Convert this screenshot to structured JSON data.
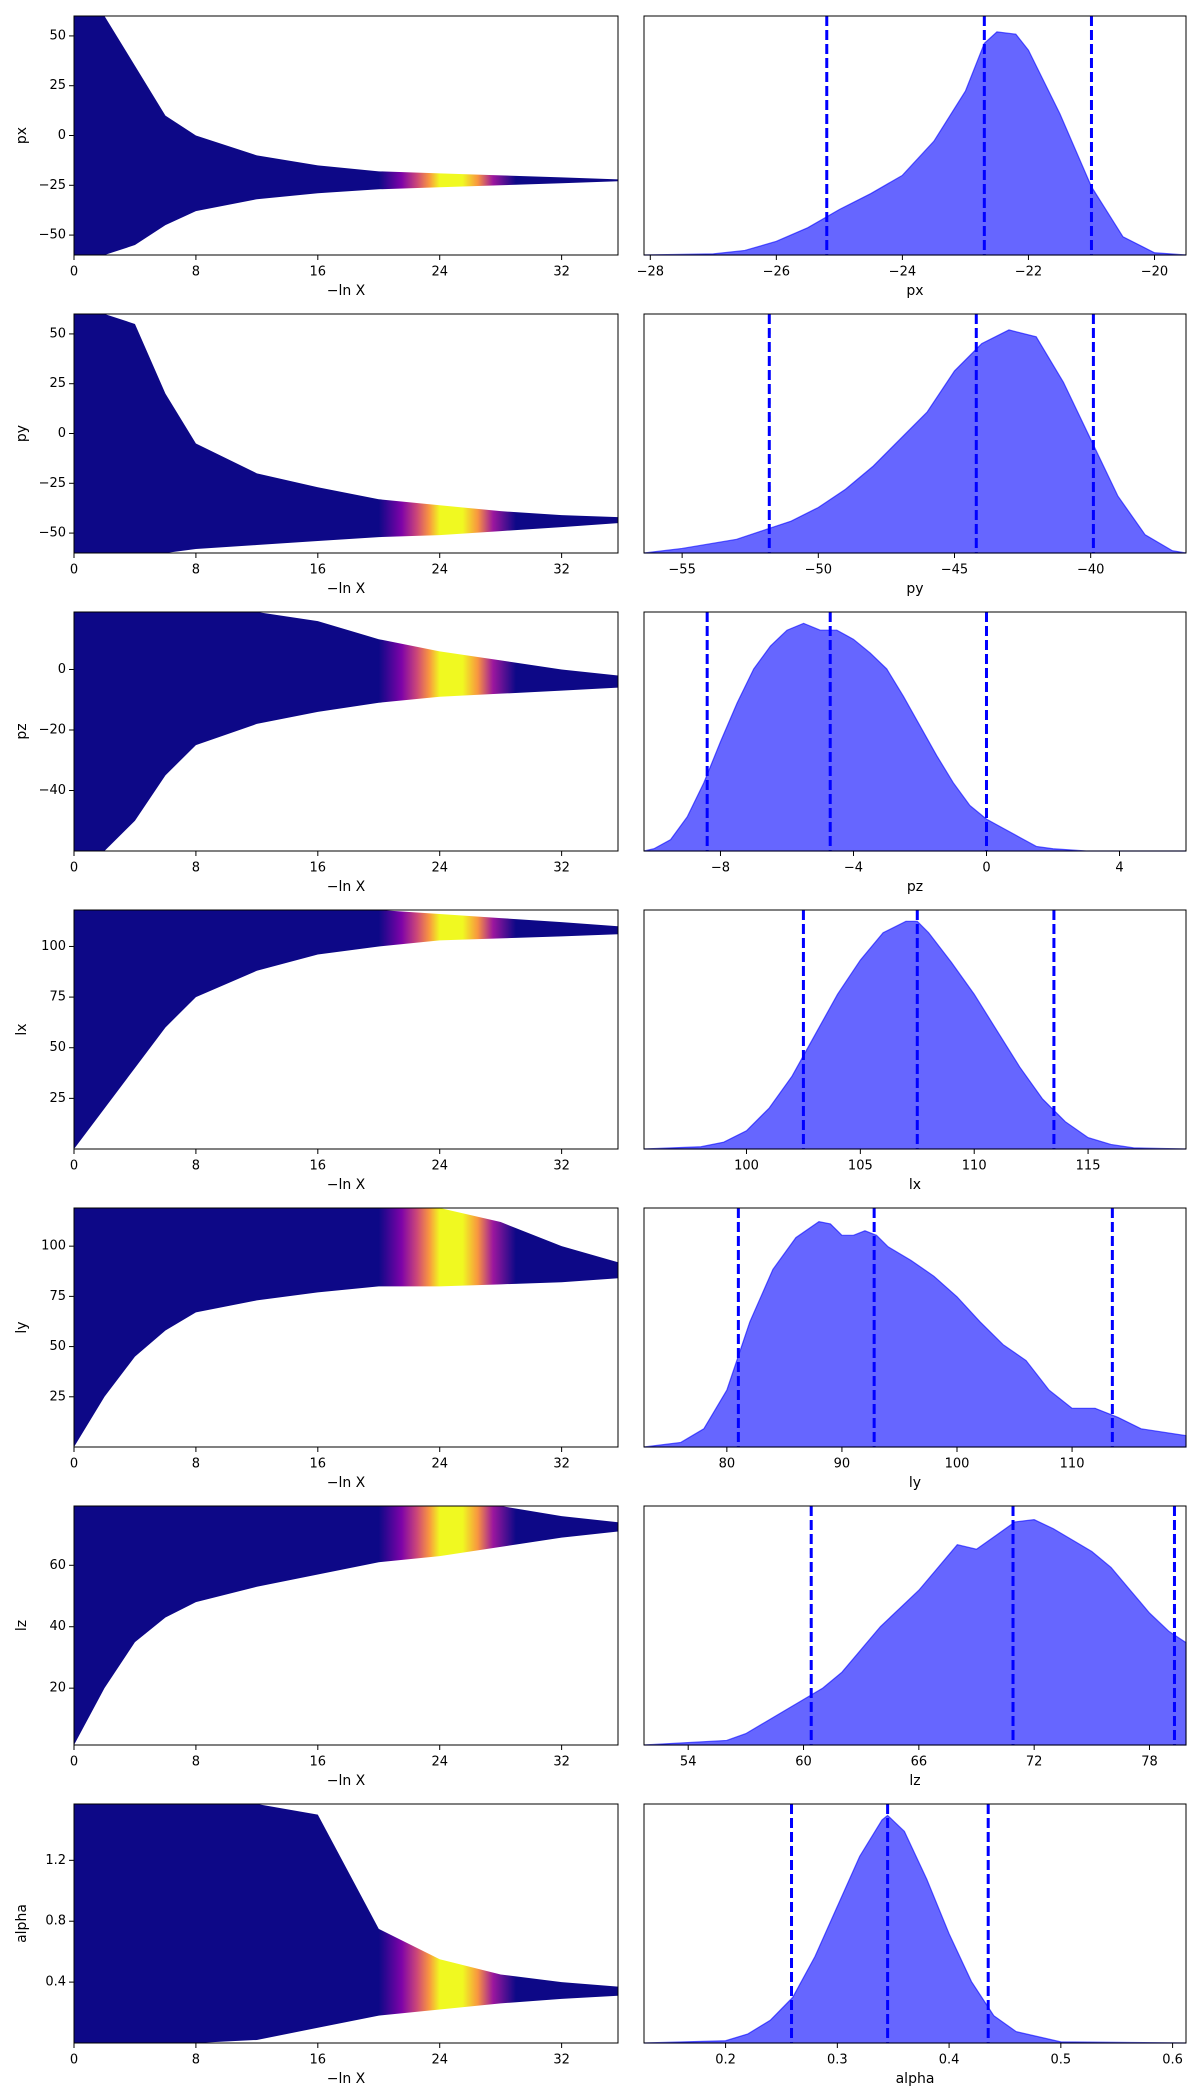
{
  "chart_data": [
    {
      "type": "trace",
      "xlabel": "−ln X",
      "ylabel": "px",
      "xlim": [
        0,
        35.7
      ],
      "xticks": [
        0,
        8,
        16,
        24,
        32
      ],
      "ylim": [
        -60,
        60
      ],
      "yticks": [
        {
          "value": -50,
          "label": "−50"
        },
        {
          "value": -25,
          "label": "−25"
        },
        0,
        25,
        50
      ],
      "x": [
        0,
        2,
        4,
        6,
        8,
        12,
        16,
        20,
        24,
        28,
        32,
        35.7
      ],
      "upper": [
        60,
        60,
        35,
        10,
        0,
        -10,
        -15,
        -18,
        -19,
        -20,
        -21,
        -22
      ],
      "lower": [
        -60,
        -60,
        -55,
        -45,
        -38,
        -32,
        -29,
        -27,
        -26,
        -25,
        -24,
        -23
      ],
      "colormap": {
        "x": [
          20,
          21.5,
          22.5,
          23.3,
          24,
          25.5,
          26.5,
          27.5,
          29
        ],
        "colors": [
          "#0d0887",
          "#7e03a8",
          "#cc4778",
          "#f89540",
          "#f0f921",
          "#f0f921",
          "#f89540",
          "#9c179e",
          "#0d0887"
        ]
      }
    },
    {
      "type": "kde",
      "xlabel": "px",
      "xlim": [
        -28.1,
        -19.5
      ],
      "xticks": [
        {
          "value": -28,
          "label": "−28"
        },
        {
          "value": -26,
          "label": "−26"
        },
        {
          "value": -24,
          "label": "−24"
        },
        {
          "value": -22,
          "label": "−22"
        },
        {
          "value": -20,
          "label": "−20"
        }
      ],
      "ylim": [
        0,
        1.05
      ],
      "color": "#0000ff",
      "x": [
        -28.1,
        -27,
        -26.5,
        -26,
        -25.5,
        -25,
        -24.5,
        -24,
        -23.5,
        -23,
        -22.7,
        -22.5,
        -22.2,
        -22,
        -21.5,
        -21,
        -20.5,
        -20,
        -19.5
      ],
      "density": [
        0,
        0.005,
        0.02,
        0.06,
        0.12,
        0.2,
        0.27,
        0.35,
        0.5,
        0.72,
        0.93,
        0.98,
        0.97,
        0.9,
        0.62,
        0.3,
        0.08,
        0.01,
        0
      ],
      "quantiles": [
        -25.2,
        -22.7,
        -21
      ]
    },
    {
      "type": "trace",
      "xlabel": "−ln X",
      "ylabel": "py",
      "xlim": [
        0,
        35.7
      ],
      "xticks": [
        0,
        8,
        16,
        24,
        32
      ],
      "ylim": [
        -60,
        60
      ],
      "yticks": [
        {
          "value": -50,
          "label": "−50"
        },
        {
          "value": -25,
          "label": "−25"
        },
        0,
        25,
        50
      ],
      "x": [
        0,
        2,
        4,
        6,
        8,
        12,
        16,
        20,
        24,
        28,
        32,
        35.7
      ],
      "upper": [
        60,
        60,
        55,
        20,
        -5,
        -20,
        -27,
        -33,
        -36,
        -39,
        -41,
        -42
      ],
      "lower": [
        -60,
        -60,
        -60,
        -60,
        -58,
        -56,
        -54,
        -52,
        -51,
        -49,
        -47,
        -45
      ],
      "colormap": {
        "x": [
          20,
          21.5,
          22.5,
          23.3,
          24,
          25.5,
          26.5,
          27.5,
          29
        ],
        "colors": [
          "#0d0887",
          "#7e03a8",
          "#cc4778",
          "#f89540",
          "#f0f921",
          "#f0f921",
          "#f89540",
          "#9c179e",
          "#0d0887"
        ]
      }
    },
    {
      "type": "kde",
      "xlabel": "py",
      "xlim": [
        -56.4,
        -36.5
      ],
      "xticks": [
        {
          "value": -55,
          "label": "−55"
        },
        {
          "value": -50,
          "label": "−50"
        },
        {
          "value": -45,
          "label": "−45"
        },
        {
          "value": -40,
          "label": "−40"
        }
      ],
      "ylim": [
        0,
        1.05
      ],
      "color": "#0000ff",
      "x": [
        -56.4,
        -55,
        -53,
        -52,
        -51,
        -50,
        -49,
        -48,
        -47,
        -46,
        -45,
        -44,
        -43,
        -42,
        -41,
        -40,
        -39,
        -38,
        -37,
        -36.5
      ],
      "density": [
        0,
        0.02,
        0.06,
        0.1,
        0.14,
        0.2,
        0.28,
        0.38,
        0.5,
        0.62,
        0.8,
        0.92,
        0.98,
        0.95,
        0.75,
        0.5,
        0.25,
        0.08,
        0.01,
        0
      ],
      "quantiles": [
        -51.8,
        -44.2,
        -39.9
      ]
    },
    {
      "type": "trace",
      "xlabel": "−ln X",
      "ylabel": "pz",
      "xlim": [
        0,
        35.7
      ],
      "xticks": [
        0,
        8,
        16,
        24,
        32
      ],
      "ylim": [
        -60,
        19
      ],
      "yticks": [
        {
          "value": -40,
          "label": "−40"
        },
        {
          "value": -20,
          "label": "−20"
        },
        0
      ],
      "x": [
        0,
        2,
        4,
        6,
        8,
        12,
        16,
        20,
        24,
        28,
        32,
        35.7
      ],
      "upper": [
        19,
        19,
        19,
        19,
        19,
        19,
        16,
        10,
        6,
        3,
        0,
        -2
      ],
      "lower": [
        -60,
        -60,
        -50,
        -35,
        -25,
        -18,
        -14,
        -11,
        -9,
        -8,
        -7,
        -6
      ],
      "colormap": {
        "x": [
          20,
          21.5,
          22.5,
          23.3,
          24,
          25.5,
          26.5,
          27.5,
          29
        ],
        "colors": [
          "#0d0887",
          "#7e03a8",
          "#cc4778",
          "#f89540",
          "#f0f921",
          "#f0f921",
          "#f89540",
          "#9c179e",
          "#0d0887"
        ]
      }
    },
    {
      "type": "kde",
      "xlabel": "pz",
      "xlim": [
        -10.3,
        6
      ],
      "xticks": [
        {
          "value": -8,
          "label": "−8"
        },
        {
          "value": -4,
          "label": "−4"
        },
        0,
        4
      ],
      "ylim": [
        0,
        1.05
      ],
      "color": "#0000ff",
      "x": [
        -10.3,
        -10,
        -9.5,
        -9,
        -8.5,
        -8,
        -7.5,
        -7,
        -6.5,
        -6,
        -5.5,
        -5,
        -4.5,
        -4,
        -3.5,
        -3,
        -2.5,
        -2,
        -1.5,
        -1,
        -0.5,
        0,
        0.5,
        1,
        1.5,
        2,
        3,
        6
      ],
      "density": [
        0,
        0.01,
        0.05,
        0.15,
        0.3,
        0.48,
        0.65,
        0.8,
        0.9,
        0.97,
        1,
        0.97,
        0.97,
        0.93,
        0.87,
        0.8,
        0.68,
        0.55,
        0.42,
        0.3,
        0.2,
        0.14,
        0.1,
        0.06,
        0.02,
        0.01,
        0,
        0
      ],
      "quantiles": [
        -8.4,
        -4.7,
        0
      ]
    },
    {
      "type": "trace",
      "xlabel": "−ln X",
      "ylabel": "lx",
      "xlim": [
        0,
        35.7
      ],
      "xticks": [
        0,
        8,
        16,
        24,
        32
      ],
      "ylim": [
        0,
        118
      ],
      "yticks": [
        25,
        50,
        75,
        100
      ],
      "x": [
        0,
        2,
        4,
        6,
        8,
        12,
        16,
        20,
        24,
        28,
        32,
        35.7
      ],
      "upper": [
        118,
        118,
        118,
        118,
        118,
        118,
        118,
        118,
        116,
        114,
        112,
        110
      ],
      "lower": [
        0,
        20,
        40,
        60,
        75,
        88,
        96,
        100,
        103,
        104,
        105,
        106
      ],
      "colormap": {
        "x": [
          20,
          21.5,
          22.5,
          23.3,
          24,
          25.5,
          26.5,
          27.5,
          29
        ],
        "colors": [
          "#0d0887",
          "#7e03a8",
          "#cc4778",
          "#f89540",
          "#f0f921",
          "#f0f921",
          "#f89540",
          "#9c179e",
          "#0d0887"
        ]
      }
    },
    {
      "type": "kde",
      "xlabel": "lx",
      "xlim": [
        95.5,
        119.3
      ],
      "xticks": [
        100,
        105,
        110,
        115
      ],
      "ylim": [
        0,
        1.05
      ],
      "color": "#0000ff",
      "x": [
        95.5,
        98,
        99,
        100,
        101,
        102,
        103,
        104,
        105,
        106,
        107,
        107.5,
        108,
        109,
        110,
        111,
        112,
        113,
        114,
        115,
        116,
        117,
        119.3
      ],
      "density": [
        0,
        0.01,
        0.03,
        0.08,
        0.18,
        0.32,
        0.5,
        0.68,
        0.83,
        0.95,
        1,
        1,
        0.95,
        0.82,
        0.68,
        0.52,
        0.36,
        0.22,
        0.12,
        0.05,
        0.02,
        0.005,
        0
      ],
      "quantiles": [
        102.5,
        107.5,
        113.5
      ]
    },
    {
      "type": "trace",
      "xlabel": "−ln X",
      "ylabel": "ly",
      "xlim": [
        0,
        35.7
      ],
      "xticks": [
        0,
        8,
        16,
        24,
        32
      ],
      "ylim": [
        0,
        119
      ],
      "yticks": [
        25,
        50,
        75,
        100
      ],
      "x": [
        0,
        2,
        4,
        6,
        8,
        12,
        16,
        20,
        24,
        28,
        32,
        35.7
      ],
      "upper": [
        119,
        119,
        119,
        119,
        119,
        119,
        119,
        119,
        119,
        112,
        100,
        92
      ],
      "lower": [
        0,
        25,
        45,
        58,
        67,
        73,
        77,
        80,
        80,
        81,
        82,
        84
      ],
      "colormap": {
        "x": [
          20,
          21.5,
          22.5,
          23.3,
          24,
          25.5,
          26.5,
          27.5,
          29
        ],
        "colors": [
          "#0d0887",
          "#7e03a8",
          "#cc4778",
          "#f89540",
          "#f0f921",
          "#f0f921",
          "#f89540",
          "#9c179e",
          "#0d0887"
        ]
      }
    },
    {
      "type": "kde",
      "xlabel": "ly",
      "xlim": [
        72.8,
        119.9
      ],
      "xticks": [
        80,
        90,
        100,
        110
      ],
      "ylim": [
        0,
        1.05
      ],
      "color": "#0000ff",
      "x": [
        72.8,
        76,
        78,
        80,
        82,
        84,
        86,
        88,
        89,
        90,
        91,
        92,
        93,
        94,
        96,
        98,
        100,
        102,
        104,
        106,
        108,
        110,
        112,
        114,
        116,
        119.9
      ],
      "density": [
        0,
        0.02,
        0.08,
        0.25,
        0.55,
        0.78,
        0.92,
        0.99,
        0.98,
        0.93,
        0.93,
        0.95,
        0.93,
        0.88,
        0.82,
        0.75,
        0.66,
        0.55,
        0.45,
        0.38,
        0.25,
        0.17,
        0.17,
        0.13,
        0.08,
        0.05
      ],
      "quantiles": [
        81,
        92.8,
        113.5
      ]
    },
    {
      "type": "trace",
      "xlabel": "−ln X",
      "ylabel": "lz",
      "xlim": [
        0,
        35.7
      ],
      "xticks": [
        0,
        8,
        16,
        24,
        32
      ],
      "ylim": [
        1.5,
        79.3
      ],
      "yticks": [
        20,
        40,
        60
      ],
      "x": [
        0,
        2,
        4,
        6,
        8,
        12,
        16,
        20,
        24,
        28,
        32,
        35.7
      ],
      "upper": [
        79.3,
        79.3,
        79.3,
        79.3,
        79.3,
        79.3,
        79.3,
        79.3,
        79.3,
        79.3,
        76,
        74
      ],
      "lower": [
        1.5,
        20,
        35,
        43,
        48,
        53,
        57,
        61,
        63,
        66,
        69,
        71
      ],
      "colormap": {
        "x": [
          20,
          21.5,
          22.5,
          23.3,
          24,
          25.5,
          26.5,
          27.5,
          29
        ],
        "colors": [
          "#0d0887",
          "#7e03a8",
          "#cc4778",
          "#f89540",
          "#f0f921",
          "#f0f921",
          "#f89540",
          "#9c179e",
          "#0d0887"
        ]
      }
    },
    {
      "type": "kde",
      "xlabel": "lz",
      "xlim": [
        51.7,
        79.9
      ],
      "xticks": [
        54,
        60,
        66,
        72,
        78
      ],
      "ylim": [
        0,
        1.05
      ],
      "color": "#0000ff",
      "x": [
        51.7,
        56,
        57,
        58,
        59,
        60,
        61,
        62,
        63,
        64,
        65,
        66,
        67,
        68,
        69,
        70,
        71,
        72,
        73,
        74,
        75,
        76,
        77,
        78,
        79,
        79.9
      ],
      "density": [
        0,
        0.02,
        0.05,
        0.1,
        0.15,
        0.2,
        0.25,
        0.32,
        0.42,
        0.52,
        0.6,
        0.68,
        0.78,
        0.88,
        0.86,
        0.92,
        0.98,
        0.99,
        0.95,
        0.9,
        0.85,
        0.78,
        0.68,
        0.58,
        0.5,
        0.45
      ],
      "quantiles": [
        60.4,
        70.9,
        79.3
      ]
    },
    {
      "type": "trace",
      "xlabel": "−ln X",
      "ylabel": "alpha",
      "xlim": [
        0,
        35.7
      ],
      "xticks": [
        0,
        8,
        16,
        24,
        32
      ],
      "ylim": [
        0,
        1.57
      ],
      "yticks": [
        0.4,
        0.8,
        1.2
      ],
      "x": [
        0,
        2,
        4,
        6,
        8,
        12,
        16,
        20,
        24,
        28,
        32,
        35.7
      ],
      "upper": [
        1.57,
        1.57,
        1.57,
        1.57,
        1.57,
        1.57,
        1.5,
        0.75,
        0.55,
        0.45,
        0.4,
        0.37
      ],
      "lower": [
        0,
        0,
        0,
        0,
        0,
        0.02,
        0.1,
        0.18,
        0.22,
        0.26,
        0.29,
        0.31
      ],
      "colormap": {
        "x": [
          20,
          21.5,
          22.5,
          23.3,
          24,
          25.5,
          26.5,
          27.5,
          29
        ],
        "colors": [
          "#0d0887",
          "#7e03a8",
          "#cc4778",
          "#f89540",
          "#f0f921",
          "#f0f921",
          "#f89540",
          "#9c179e",
          "#0d0887"
        ]
      }
    },
    {
      "type": "kde",
      "xlabel": "alpha",
      "xlim": [
        0.127,
        0.612
      ],
      "xticks": [
        0.2,
        0.3,
        0.4,
        0.5,
        0.6
      ],
      "ylim": [
        0,
        1.05
      ],
      "color": "#0000ff",
      "x": [
        0.127,
        0.2,
        0.22,
        0.24,
        0.26,
        0.28,
        0.3,
        0.32,
        0.34,
        0.345,
        0.36,
        0.38,
        0.4,
        0.42,
        0.44,
        0.46,
        0.5,
        0.612
      ],
      "density": [
        0,
        0.01,
        0.04,
        0.1,
        0.2,
        0.38,
        0.6,
        0.82,
        0.98,
        1,
        0.93,
        0.72,
        0.48,
        0.27,
        0.12,
        0.05,
        0.005,
        0
      ],
      "quantiles": [
        0.259,
        0.345,
        0.435
      ]
    }
  ]
}
